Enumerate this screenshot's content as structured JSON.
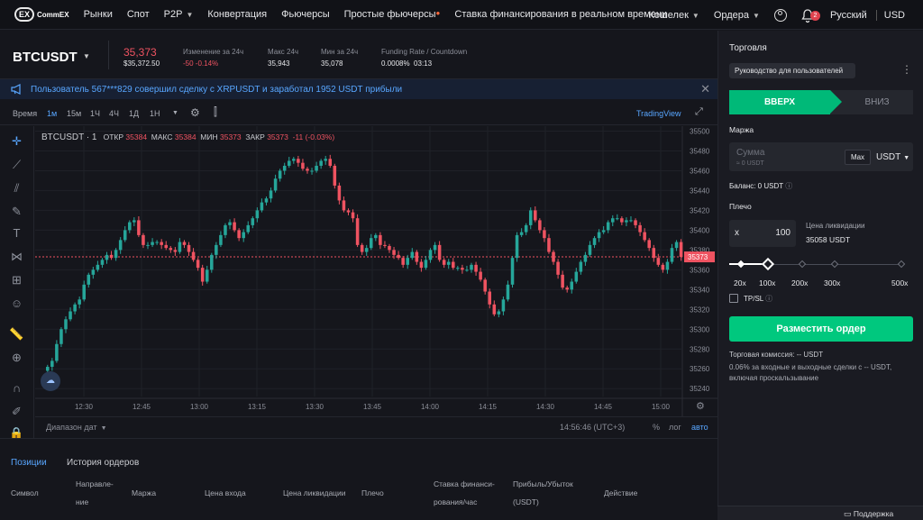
{
  "nav": {
    "logo_mark": "EX",
    "logo_text": "CommEX",
    "items": [
      "Рынки",
      "Спот",
      "P2P",
      "Конвертация",
      "Фьючерсы",
      "Простые фьючерсы",
      "Ставка финансирования в реальном времени"
    ],
    "wallet": "Кошелек",
    "orders": "Ордера",
    "notif_count": "2",
    "language": "Русский",
    "currency": "USD"
  },
  "ticker": {
    "symbol": "BTCUSDT",
    "price": "35,373",
    "price_usd": "$35,372.50",
    "change_label": "Изменение за 24ч",
    "change_value": "-50 -0.14%",
    "high_label": "Макс 24ч",
    "high_value": "35,943",
    "low_label": "Мин за 24ч",
    "low_value": "35,078",
    "funding_label": "Funding Rate / Countdown",
    "funding_value": "0.0008%",
    "countdown": "03:13"
  },
  "banner": {
    "text": "Пользователь 567***829 совершил сделку с XRPUSDT и заработал 1952 USDT прибыли"
  },
  "toolbar": {
    "time_label": "Время",
    "intervals": [
      "1м",
      "15м",
      "1Ч",
      "4Ч",
      "1Д",
      "1Н"
    ],
    "active_interval": "1м",
    "tradingview": "TradingView"
  },
  "chart_legend": {
    "symbol": "BTCUSDT · 1",
    "open_label": "ОТКР",
    "open": "35384",
    "high_label": "МАКС",
    "high": "35384",
    "low_label": "МИН",
    "low": "35373",
    "close_label": "ЗАКР",
    "close": "35373",
    "change": "-11 (-0.03%)"
  },
  "chart_data": {
    "type": "candlestick",
    "x_ticks": [
      "12:30",
      "12:45",
      "13:00",
      "13:15",
      "13:30",
      "13:45",
      "14:00",
      "14:15",
      "14:30",
      "14:45",
      "15:00"
    ],
    "y_ticks": [
      "35500",
      "35480",
      "35460",
      "35440",
      "35420",
      "35400",
      "35380",
      "35360",
      "35340",
      "35320",
      "35300",
      "35280",
      "35260",
      "35240"
    ],
    "ylim": [
      35232,
      35505
    ],
    "last_price": "35373",
    "up_color": "#26a69a",
    "down_color": "#ef5361",
    "close_path": [
      35262,
      35268,
      35285,
      35300,
      35310,
      35318,
      35325,
      35330,
      35345,
      35355,
      35360,
      35365,
      35370,
      35375,
      35372,
      35380,
      35390,
      35400,
      35408,
      35410,
      35395,
      35385,
      35385,
      35388,
      35388,
      35385,
      35382,
      35380,
      35378,
      35388,
      35385,
      35378,
      35370,
      35362,
      35348,
      35360,
      35375,
      35385,
      35395,
      35405,
      35408,
      35400,
      35392,
      35398,
      35405,
      35412,
      35420,
      35428,
      35432,
      35440,
      35452,
      35460,
      35465,
      35470,
      35472,
      35468,
      35462,
      35460,
      35460,
      35465,
      35470,
      35472,
      35465,
      35445,
      35430,
      35420,
      35418,
      35412,
      35385,
      35378,
      35382,
      35392,
      35395,
      35385,
      35384,
      35380,
      35375,
      35372,
      35365,
      35372,
      35378,
      35368,
      35362,
      35370,
      35380,
      35385,
      35370,
      35365,
      35368,
      35362,
      35362,
      35360,
      35360,
      35365,
      35358,
      35350,
      35338,
      35325,
      35315,
      35318,
      35330,
      35345,
      35372,
      35395,
      35398,
      35405,
      35420,
      35410,
      35400,
      35392,
      35378,
      35368,
      35355,
      35342,
      35340,
      35348,
      35358,
      35368,
      35375,
      35385,
      35392,
      35398,
      35400,
      35408,
      35412,
      35412,
      35408,
      35410,
      35410,
      35405,
      35398,
      35390,
      35382,
      35372,
      35365,
      35360,
      35368,
      35382,
      35388,
      35373
    ]
  },
  "date_bar": {
    "range": "Диапазон дат",
    "clock": "14:56:46 (UTC+3)",
    "percent": "%",
    "log": "лог",
    "auto": "авто"
  },
  "bottom": {
    "tab_positions": "Позиции",
    "tab_history": "История ордеров",
    "cols": [
      "Символ",
      "Направле-\nние",
      "Маржа",
      "Цена входа",
      "Цена ликвидации",
      "Плечо",
      "Ставка финанси-\nрования/час",
      "Прибыль/Убыток\n(USDT)",
      "Действие"
    ]
  },
  "panel": {
    "title": "Торговля",
    "guide": "Руководство для пользователей",
    "up": "ВВЕРХ",
    "down": "ВНИЗ",
    "margin_label": "Маржа",
    "amount_placeholder": "Сумма",
    "amount_sub": "≈ 0 USDT",
    "max": "Max",
    "currency": "USDT",
    "balance": "Баланс: 0 USDT",
    "leverage_label": "Плечо",
    "leverage_prefix": "x",
    "leverage_value": "100",
    "liq_label": "Цена ликвидации",
    "liq_value": "35058 USDT",
    "leverage_marks": [
      "20x",
      "100x",
      "200x",
      "300x",
      "500x"
    ],
    "leverage_selected": 100,
    "tpsl": "TP/SL",
    "place_order": "Разместить ордер",
    "fee_label": "Торговая комиссия: -- USDT",
    "fee_note": "0.06% за входные и выходные сделки с -- USDT, включая проскальзывание",
    "support": "Поддержка"
  },
  "colors": {
    "accent_green": "#00c87e",
    "down_red": "#ef5361",
    "link_blue": "#58a6ff",
    "badge": "#e0424e"
  }
}
